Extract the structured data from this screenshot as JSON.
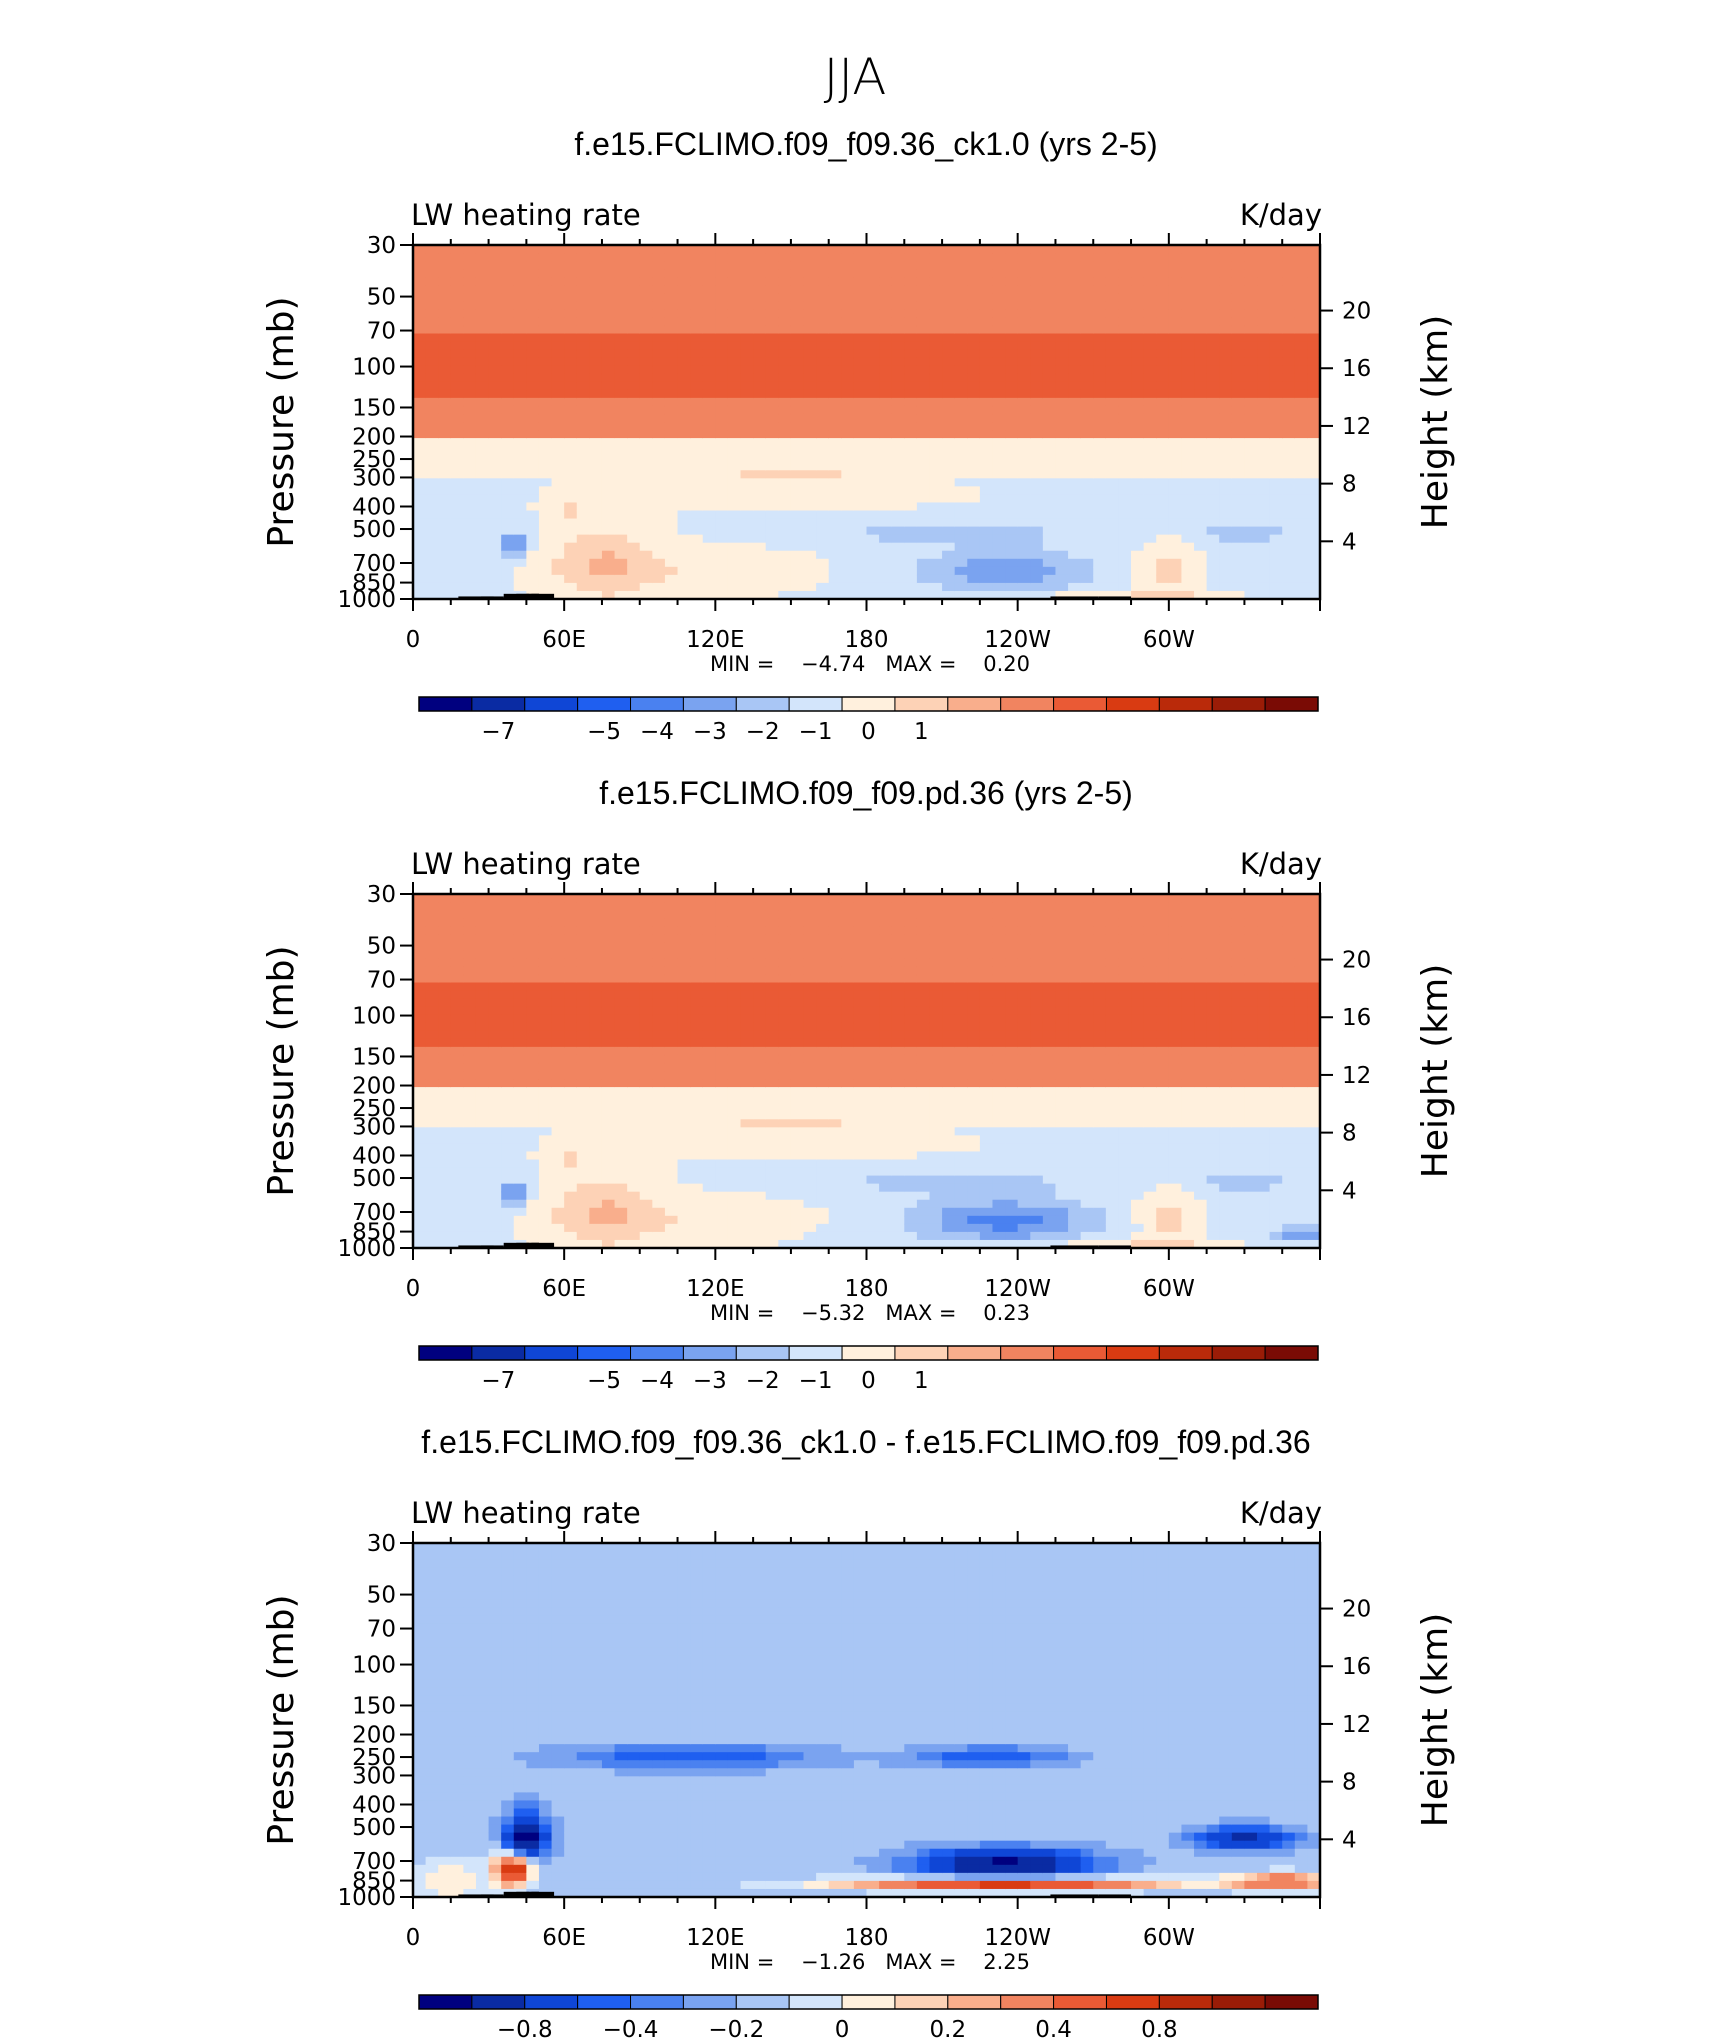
{
  "figure_title": "JJA",
  "chart_data": [
    {
      "type": "heatmap",
      "panel": "case",
      "title": "f.e15.FCLIMO.f09_f09.36_ck1.0 (yrs 2-5)",
      "left_label": "LW heating rate",
      "right_label": "K/day",
      "ylabel": "Pressure (mb)",
      "ylabel_right": "Height (km)",
      "x_ticks": [
        "0",
        "60E",
        "120E",
        "180",
        "120W",
        "60W"
      ],
      "y_ticks": [
        "30",
        "50",
        "70",
        "100",
        "150",
        "200",
        "250",
        "300",
        "400",
        "500",
        "700",
        "850",
        "1000"
      ],
      "y_right_ticks": [
        "20",
        "16",
        "12",
        "8",
        "4"
      ],
      "stats_text": "MIN =    −4.74   MAX =    0.20",
      "colorbar_ticks": [
        "−7",
        "−5",
        "−4",
        "−3",
        "−2",
        "−1",
        "0",
        "1"
      ],
      "colorbar_levels": [
        -7.5,
        -6.5,
        -5.5,
        -4.5,
        -4,
        -3.5,
        -3,
        -2.5,
        -2,
        -1.5,
        -1,
        -0.5,
        0,
        0.5,
        1,
        1.5,
        2
      ],
      "min": -4.74,
      "max": 0.2
    },
    {
      "type": "heatmap",
      "panel": "reference",
      "title": "f.e15.FCLIMO.f09_f09.pd.36 (yrs 2-5)",
      "left_label": "LW heating rate",
      "right_label": "K/day",
      "ylabel": "Pressure (mb)",
      "ylabel_right": "Height (km)",
      "x_ticks": [
        "0",
        "60E",
        "120E",
        "180",
        "120W",
        "60W"
      ],
      "y_ticks": [
        "30",
        "50",
        "70",
        "100",
        "150",
        "200",
        "250",
        "300",
        "400",
        "500",
        "700",
        "850",
        "1000"
      ],
      "y_right_ticks": [
        "20",
        "16",
        "12",
        "8",
        "4"
      ],
      "stats_text": "MIN =    −5.32   MAX =    0.23",
      "colorbar_ticks": [
        "−7",
        "−5",
        "−4",
        "−3",
        "−2",
        "−1",
        "0",
        "1"
      ],
      "colorbar_levels": [
        -7.5,
        -6.5,
        -5.5,
        -4.5,
        -4,
        -3.5,
        -3,
        -2.5,
        -2,
        -1.5,
        -1,
        -0.5,
        0,
        0.5,
        1,
        1.5,
        2
      ],
      "min": -5.32,
      "max": 0.23
    },
    {
      "type": "heatmap",
      "panel": "difference",
      "title": "f.e15.FCLIMO.f09_f09.36_ck1.0 - f.e15.FCLIMO.f09_f09.pd.36",
      "left_label": "LW heating rate",
      "right_label": "K/day",
      "ylabel": "Pressure (mb)",
      "ylabel_right": "Height (km)",
      "x_ticks": [
        "0",
        "60E",
        "120E",
        "180",
        "120W",
        "60W"
      ],
      "y_ticks": [
        "30",
        "50",
        "70",
        "100",
        "150",
        "200",
        "250",
        "300",
        "400",
        "500",
        "700",
        "850",
        "1000"
      ],
      "y_right_ticks": [
        "20",
        "16",
        "12",
        "8",
        "4"
      ],
      "stats_text": "MIN =    −1.26   MAX =    2.25",
      "colorbar_ticks": [
        "−0.8",
        "−0.4",
        "−0.2",
        "0",
        "0.2",
        "0.4",
        "0.8"
      ],
      "colorbar_levels": [
        -1,
        -0.8,
        -0.6,
        -0.4,
        -0.3,
        -0.2,
        -0.1,
        0,
        0.1,
        0.2,
        0.3,
        0.4,
        0.6,
        0.8,
        1,
        1.2
      ],
      "min": -1.26,
      "max": 2.25
    }
  ],
  "colors": {
    "palette": [
      "#00007f",
      "#0a2ba3",
      "#0f46d6",
      "#1f5ff0",
      "#4a81f0",
      "#7aa3f0",
      "#a9c6f5",
      "#d3e5fb",
      "#fff0dd",
      "#fdd2b6",
      "#f9ae8c",
      "#f18460",
      "#ea5a35",
      "#d93b12",
      "#ba2a0a",
      "#9a1c07",
      "#7a0b05"
    ],
    "outline": "#000000"
  }
}
